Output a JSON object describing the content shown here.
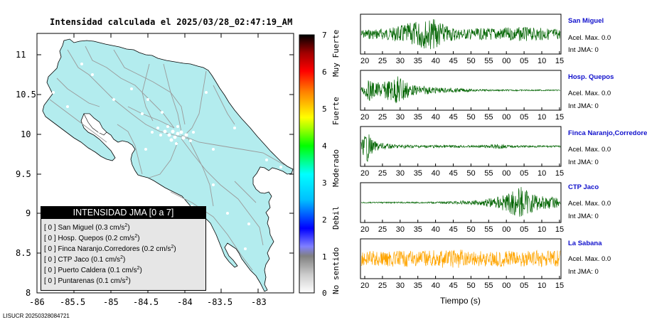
{
  "map": {
    "title": "Intensidad calculada el 2025/03/28_02:47:19_AM",
    "y_ticks": [
      "11",
      "10.5",
      "10",
      "9.5",
      "9",
      "8.5",
      "8"
    ],
    "x_ticks": [
      "-86",
      "-85.5",
      "-85",
      "-84.5",
      "-84",
      "-83.5",
      "-83"
    ],
    "land_color": "#b3ecee",
    "road_color": "#9a9a9a",
    "station_color": "#ffffff"
  },
  "legend": {
    "title": "INTENSIDAD JMA [0 a 7]",
    "entries": [
      {
        "level": "[ 0 ]",
        "station": "San Miguel",
        "accel": "0.3"
      },
      {
        "level": "[ 0 ]",
        "station": "Hosp. Quepos",
        "accel": "0.2"
      },
      {
        "level": "[ 0 ]",
        "station": "Finca Naranjo.Corredores",
        "accel": "0.2"
      },
      {
        "level": "[ 0 ]",
        "station": "CTP Jaco",
        "accel": "0.1"
      },
      {
        "level": "[ 0 ]",
        "station": "Puerto Caldera",
        "accel": "0.1"
      },
      {
        "level": "[ 0 ]",
        "station": "Puntarenas",
        "accel": "0.1"
      }
    ],
    "unit": "cm/s",
    "unit_exp": "2"
  },
  "colorbar": {
    "ticks": [
      "7",
      "6",
      "5",
      "4",
      "3",
      "2",
      "1",
      "0"
    ],
    "words": [
      "Muy Fuerte",
      "Fuerte",
      "Moderado",
      "Debil",
      "No sentido"
    ]
  },
  "waveforms": {
    "x_ticks": [
      "20",
      "25",
      "30",
      "35",
      "40",
      "45",
      "50",
      "55",
      "00",
      "05",
      "10",
      "15"
    ],
    "xlabel": "Tiempo (s)",
    "stations": [
      {
        "name": "San Miguel",
        "accel_label": "Acel. Max. 0.0",
        "int_label": "Int JMA: 0",
        "color": "#006400"
      },
      {
        "name": "Hosp. Quepos",
        "accel_label": "Acel. Max. 0.0",
        "int_label": "Int JMA: 0",
        "color": "#006400"
      },
      {
        "name": "Finca Naranjo,Corredores",
        "accel_label": "Acel. Max. 0.0",
        "int_label": "Int JMA: 0",
        "color": "#006400"
      },
      {
        "name": "CTP Jaco",
        "accel_label": "Acel. Max. 0.0",
        "int_label": "Int JMA: 0",
        "color": "#006400"
      },
      {
        "name": "La Sabana",
        "accel_label": "Acel. Max. 0.0",
        "int_label": "Int JMA: 0",
        "color": "#ffa500"
      }
    ]
  },
  "footer_id": "LISUCR 20250328084721"
}
